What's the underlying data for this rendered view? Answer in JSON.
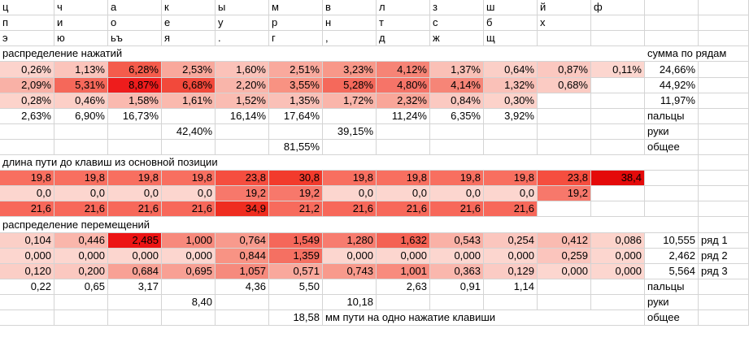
{
  "sheet": {
    "rows": [
      [
        "ц",
        "ч",
        "а",
        "к",
        "ы",
        "м",
        "в",
        "л",
        "з",
        "ш",
        "й",
        "ф",
        "",
        ""
      ],
      [
        "п",
        "и",
        "о",
        "е",
        "у",
        "р",
        "н",
        "т",
        "с",
        "б",
        "х",
        "",
        "",
        ""
      ],
      [
        "э",
        "ю",
        "ьъ",
        "я",
        ".",
        "г",
        ",",
        "д",
        "ж",
        "щ",
        "",
        "",
        "",
        ""
      ],
      [
        "распределение нажатий",
        "",
        "",
        "",
        "",
        "",
        "",
        "",
        "",
        "",
        "",
        "",
        "сумма по рядам",
        ""
      ],
      [
        "0,26%",
        "1,13%",
        "6,28%",
        "2,53%",
        "1,60%",
        "2,51%",
        "3,23%",
        "4,12%",
        "1,37%",
        "0,64%",
        "0,87%",
        "0,11%",
        "24,66%",
        ""
      ],
      [
        "2,09%",
        "5,31%",
        "8,87%",
        "6,68%",
        "2,20%",
        "3,55%",
        "5,28%",
        "4,80%",
        "4,14%",
        "1,32%",
        "0,68%",
        "",
        "44,92%",
        ""
      ],
      [
        "0,28%",
        "0,46%",
        "1,58%",
        "1,61%",
        "1,52%",
        "1,35%",
        "1,72%",
        "2,32%",
        "0,84%",
        "0,30%",
        "",
        "",
        "11,97%",
        ""
      ],
      [
        "2,63%",
        "6,90%",
        "16,73%",
        "",
        "16,14%",
        "17,64%",
        "",
        "11,24%",
        "6,35%",
        "3,92%",
        "",
        "",
        "пальцы",
        ""
      ],
      [
        "",
        "",
        "",
        "42,40%",
        "",
        "",
        "39,15%",
        "",
        "",
        "",
        "",
        "",
        "руки",
        ""
      ],
      [
        "",
        "",
        "",
        "",
        "",
        "81,55%",
        "",
        "",
        "",
        "",
        "",
        "",
        "общее",
        ""
      ],
      [
        "длина пути до клавиш из основной позиции",
        "",
        "",
        "",
        "",
        "",
        "",
        "",
        "",
        "",
        "",
        "",
        "",
        ""
      ],
      [
        "19,8",
        "19,8",
        "19,8",
        "19,8",
        "23,8",
        "30,8",
        "19,8",
        "19,8",
        "19,8",
        "19,8",
        "23,8",
        "38,4",
        "",
        ""
      ],
      [
        "0,0",
        "0,0",
        "0,0",
        "0,0",
        "19,2",
        "19,2",
        "0,0",
        "0,0",
        "0,0",
        "0,0",
        "19,2",
        "",
        "",
        ""
      ],
      [
        "21,6",
        "21,6",
        "21,6",
        "21,6",
        "34,9",
        "21,2",
        "21,6",
        "21,6",
        "21,6",
        "21,6",
        "",
        "",
        "",
        ""
      ],
      [
        "распределение перемещений",
        "",
        "",
        "",
        "",
        "",
        "",
        "",
        "",
        "",
        "",
        "",
        "",
        ""
      ],
      [
        "0,104",
        "0,446",
        "2,485",
        "1,000",
        "0,764",
        "1,549",
        "1,280",
        "1,632",
        "0,543",
        "0,254",
        "0,412",
        "0,086",
        "10,555",
        "ряд 1"
      ],
      [
        "0,000",
        "0,000",
        "0,000",
        "0,000",
        "0,844",
        "1,359",
        "0,000",
        "0,000",
        "0,000",
        "0,000",
        "0,259",
        "0,000",
        "2,462",
        "ряд 2"
      ],
      [
        "0,120",
        "0,200",
        "0,684",
        "0,695",
        "1,057",
        "0,571",
        "0,743",
        "1,001",
        "0,363",
        "0,129",
        "0,000",
        "0,000",
        "5,564",
        "ряд 3"
      ],
      [
        "0,22",
        "0,65",
        "3,17",
        "",
        "4,36",
        "5,50",
        "",
        "2,63",
        "0,91",
        "1,14",
        "",
        "",
        "пальцы",
        ""
      ],
      [
        "",
        "",
        "",
        "8,40",
        "",
        "",
        "10,18",
        "",
        "",
        "",
        "",
        "",
        "руки",
        ""
      ],
      [
        "",
        "",
        "",
        "",
        "",
        "18,58",
        "мм пути на одно нажатие клавиши",
        "",
        "",
        "",
        "",
        "",
        "общее",
        ""
      ]
    ],
    "fills": {
      "4": [
        "#fcd3cc",
        "#fbc4bb",
        "#f45c4c",
        "#f9a89c",
        "#fbc2b9",
        "#f9a99d",
        "#f89889",
        "#f68476",
        "#fac0b6",
        "#fbcfc7",
        "#fbc8c0",
        "#fcd6cf",
        "",
        ""
      ],
      "5": [
        "#f9b1a6",
        "#f5685a",
        "#ee1c1c",
        "#f2493b",
        "#f9b5aa",
        "#f89282",
        "#f5695b",
        "#f67468",
        "#f68577",
        "#fac1b8",
        "#fbcbc3",
        "",
        "",
        ""
      ],
      "6": [
        "#fcd3cb",
        "#fccfc7",
        "#fab9af",
        "#fab9ae",
        "#fabcb2",
        "#fac0b7",
        "#fab5aa",
        "#f9a699",
        "#fbc9c1",
        "#fcd2ca",
        "",
        "",
        "",
        ""
      ],
      "11": [
        "#f86f60",
        "#f86f60",
        "#f86f60",
        "#f86f60",
        "#f54e3f",
        "#f23b2c",
        "#f86f60",
        "#f86f60",
        "#f86f60",
        "#f86f60",
        "#f54e3f",
        "#e40a0a",
        "",
        ""
      ],
      "12": [
        "#fcd6cf",
        "#fcd6cf",
        "#fcd6cf",
        "#fcd6cf",
        "#f7786b",
        "#f7786b",
        "#fcd6cf",
        "#fcd6cf",
        "#fcd6cf",
        "#fcd6cf",
        "#f7786b",
        "",
        "",
        ""
      ],
      "13": [
        "#f7685a",
        "#f7685a",
        "#f7685a",
        "#f7685a",
        "#ef2d20",
        "#f76b5d",
        "#f7685a",
        "#f7685a",
        "#f7685a",
        "#f7685a",
        "",
        "",
        "",
        ""
      ],
      "15": [
        "#fbcfc7",
        "#fab6ab",
        "#ec1414",
        "#f7897c",
        "#f89a8d",
        "#f5675a",
        "#f77c6f",
        "#f46254",
        "#fab1a6",
        "#fbc6be",
        "#fabbb1",
        "#fcd3cb",
        "",
        ""
      ],
      "16": [
        "#fcd6cf",
        "#fcd6cf",
        "#fcd6cf",
        "#fcd6cf",
        "#f89384",
        "#f57062",
        "#fcd6cf",
        "#fcd6cf",
        "#fcd6cf",
        "#fcd6cf",
        "#fbc5bd",
        "#fcd6cf",
        "",
        ""
      ],
      "17": [
        "#fbcec6",
        "#fbc8c0",
        "#f8a195",
        "#f8a094",
        "#f68a7d",
        "#f9a89c",
        "#f89a8c",
        "#f88b7e",
        "#fab7ad",
        "#fbcbc4",
        "#fcd6cf",
        "#fcd6cf",
        "",
        ""
      ]
    }
  }
}
